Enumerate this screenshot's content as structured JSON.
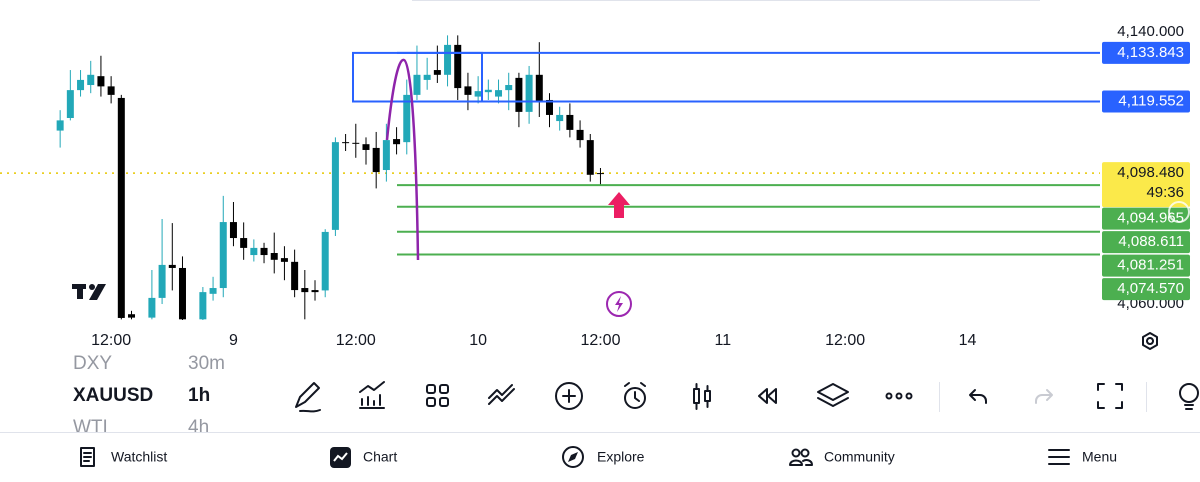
{
  "chart_data": {
    "type": "candlestick",
    "up_color": "#22a8b8",
    "down_color": "#000000",
    "xlim": [
      1.1,
      109
    ],
    "ylim": [
      4055.3,
      4149.4
    ],
    "xticks": [
      {
        "value": 12,
        "label": "12:00"
      },
      {
        "value": 24,
        "label": "9"
      },
      {
        "value": 36,
        "label": "12:00"
      },
      {
        "value": 48,
        "label": "10"
      },
      {
        "value": 60,
        "label": "12:00"
      },
      {
        "value": 72,
        "label": "11"
      },
      {
        "value": 84,
        "label": "12:00"
      },
      {
        "value": 96,
        "label": "14"
      }
    ],
    "yticks": [
      {
        "value": 4140,
        "label": "4,140.000"
      },
      {
        "value": 4060,
        "label": "4,060.000"
      }
    ],
    "x": [
      7,
      8,
      9,
      10,
      11,
      12,
      13,
      14,
      16,
      17,
      18,
      19,
      21,
      22,
      23,
      24,
      25,
      26,
      27,
      28,
      29,
      30,
      31,
      32,
      33,
      34,
      35,
      36,
      37,
      38,
      39,
      40,
      41,
      42,
      43,
      44,
      45,
      46,
      47,
      48,
      49,
      50,
      51,
      52,
      53,
      54,
      55,
      56,
      57,
      58,
      59,
      60
    ],
    "open": [
      4111,
      4114.7,
      4122.9,
      4124.4,
      4127,
      4124,
      4120.6,
      4057,
      4056,
      4061.8,
      4071.5,
      4070.6,
      4055.5,
      4063,
      4064.7,
      4084.1,
      4079.4,
      4074.4,
      4076.5,
      4075,
      4073.5,
      4072.4,
      4064.7,
      4064.1,
      4064,
      4081.8,
      4107.6,
      4107.4,
      4107,
      4105.9,
      4099.4,
      4108.5,
      4107.6,
      4121.5,
      4125.9,
      4128.8,
      4127.4,
      4136.2,
      4124,
      4121,
      4122.3,
      4121,
      4122.9,
      4126.5,
      4116.5,
      4127.4,
      4120,
      4113.8,
      4115.6,
      4111.2,
      4108.2,
      4098.5
    ],
    "high": [
      4117,
      4128.8,
      4128.8,
      4131.5,
      4133,
      4127,
      4121.5,
      4058,
      4070,
      4085,
      4083.8,
      4074,
      4065,
      4068,
      4091.8,
      4090,
      4084,
      4079,
      4078,
      4081,
      4077,
      4076,
      4070,
      4067,
      4082,
      4109,
      4110,
      4113,
      4109,
      4110.6,
      4113,
      4112,
      4126,
      4136,
      4132.4,
      4136,
      4139,
      4139,
      4128,
      4127,
      4126,
      4126,
      4128,
      4128,
      4130,
      4137,
      4122,
      4118,
      4119,
      4114,
      4110,
      4100
    ],
    "low": [
      4106,
      4114,
      4121,
      4122,
      4121,
      4119,
      4055.5,
      4055.5,
      4055.5,
      4060,
      4064,
      4055.3,
      4055.3,
      4061,
      4062,
      4077,
      4073,
      4072.5,
      4072,
      4069,
      4067,
      4062,
      4055.5,
      4061,
      4062,
      4080,
      4105,
      4103,
      4101,
      4094,
      4096,
      4104,
      4104,
      4120,
      4123,
      4125,
      4124,
      4120,
      4117,
      4119,
      4120,
      4119,
      4117,
      4112,
      4113,
      4115,
      4112,
      4111,
      4109,
      4106,
      4096,
      4095
    ],
    "close": [
      4114,
      4122.9,
      4125.9,
      4127.4,
      4124,
      4121.5,
      4055.9,
      4056,
      4061.8,
      4071.5,
      4070.6,
      4055.5,
      4063.5,
      4064.7,
      4084.1,
      4079.4,
      4076.5,
      4076.5,
      4074.4,
      4073,
      4072.4,
      4064.1,
      4063.5,
      4063.5,
      4081.2,
      4107.6,
      4107.4,
      4107.2,
      4105.3,
      4098.8,
      4108.2,
      4107,
      4121.5,
      4127.4,
      4127.4,
      4127.4,
      4136.2,
      4123.5,
      4121.5,
      4122.6,
      4123,
      4122.9,
      4124.4,
      4116.5,
      4127.4,
      4119.4,
      4115.6,
      4115.6,
      4111.2,
      4108.2,
      4098,
      4098.48
    ],
    "current_price": {
      "value": 4098.48,
      "label": "4,098.480",
      "countdown": "49:36",
      "color": "#fbe94a"
    },
    "levels": [
      {
        "value": 4133.843,
        "label": "4,133.843",
        "color": "#2962ff"
      },
      {
        "value": 4119.552,
        "label": "4,119.552",
        "color": "#2962ff"
      },
      {
        "value": 4094.965,
        "label": "4,094.965",
        "color": "#4caf50"
      },
      {
        "value": 4088.611,
        "label": "4,088.611",
        "color": "#4caf50"
      },
      {
        "value": 4081.251,
        "label": "4,081.251",
        "color": "#4caf50"
      },
      {
        "value": 4074.57,
        "label": "4,074.570",
        "color": "#4caf50"
      }
    ]
  },
  "symbols": [
    {
      "symbol": "DXY",
      "interval": "30m"
    },
    {
      "symbol": "XAUUSD",
      "interval": "1h"
    },
    {
      "symbol": "WTI",
      "interval": "4h"
    }
  ],
  "nav": [
    "Watchlist",
    "Chart",
    "Explore",
    "Community",
    "Menu"
  ]
}
